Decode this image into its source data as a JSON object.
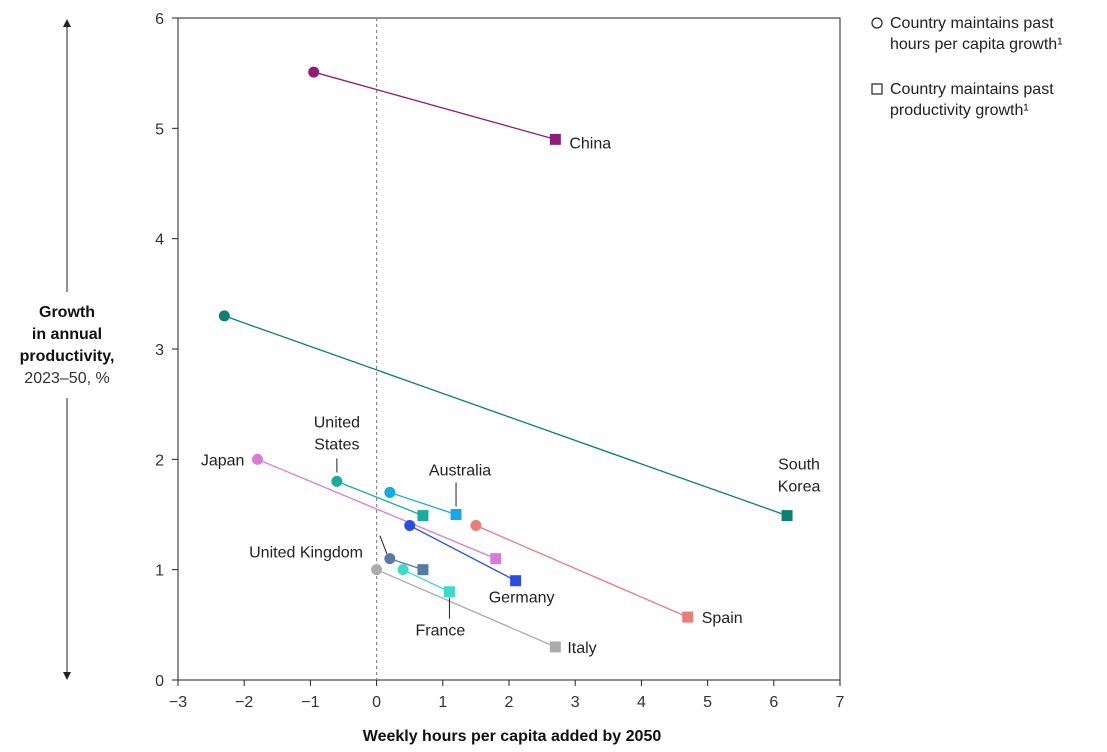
{
  "chart_data": {
    "type": "scatter",
    "xlabel": "Weekly hours per capita added by 2050",
    "ylabel": {
      "line1": "Growth",
      "line2": "in annual",
      "line3": "productivity,",
      "line4": "2023–50, %"
    },
    "xlim": [
      -3,
      7
    ],
    "ylim": [
      0,
      6
    ],
    "x_ticks": [
      -3,
      -2,
      -1,
      0,
      1,
      2,
      3,
      4,
      5,
      6,
      7
    ],
    "y_ticks": [
      0,
      1,
      2,
      3,
      4,
      5,
      6
    ],
    "x_tick_labels": [
      "−3",
      "−2",
      "−1",
      "0",
      "1",
      "2",
      "3",
      "4",
      "5",
      "6",
      "7"
    ],
    "y_tick_labels": [
      "0",
      "1",
      "2",
      "3",
      "4",
      "5",
      "6"
    ],
    "grid": false,
    "reference_line_x": 0,
    "legend_position": "top-right",
    "legend": [
      {
        "marker": "circle",
        "label": "Country maintains past hours per capita growth¹"
      },
      {
        "marker": "square",
        "label": "Country maintains past productivity growth¹"
      }
    ],
    "series": [
      {
        "name": "China",
        "color": "#8e1f78",
        "circle": [
          -0.95,
          5.51
        ],
        "square": [
          2.7,
          4.9
        ]
      },
      {
        "name": "South Korea",
        "color": "#0f7f73",
        "circle": [
          -2.3,
          3.3
        ],
        "square": [
          6.2,
          1.49
        ]
      },
      {
        "name": "Japan",
        "color": "#d97ad6",
        "circle": [
          -1.8,
          2.0
        ],
        "square": [
          1.8,
          1.1
        ]
      },
      {
        "name": "United States",
        "color": "#1bab9c",
        "circle": [
          -0.6,
          1.8
        ],
        "square": [
          0.7,
          1.49
        ]
      },
      {
        "name": "Australia",
        "color": "#1aa7e6",
        "circle": [
          0.2,
          1.7
        ],
        "square": [
          1.2,
          1.5
        ]
      },
      {
        "name": "Spain",
        "color": "#ea7c7a",
        "circle": [
          1.5,
          1.4
        ],
        "square": [
          4.7,
          0.57
        ]
      },
      {
        "name": "Germany",
        "color": "#2a4de6",
        "circle": [
          0.5,
          1.4
        ],
        "square": [
          2.1,
          0.9
        ]
      },
      {
        "name": "United Kingdom",
        "color": "#587aa6",
        "circle": [
          0.2,
          1.1
        ],
        "square": [
          0.7,
          1.0
        ]
      },
      {
        "name": "France",
        "color": "#3fd9c8",
        "circle": [
          0.4,
          1.0
        ],
        "square": [
          1.1,
          0.8
        ]
      },
      {
        "name": "Italy",
        "color": "#ababab",
        "circle": [
          0.0,
          1.0
        ],
        "square": [
          2.7,
          0.3
        ]
      }
    ]
  }
}
